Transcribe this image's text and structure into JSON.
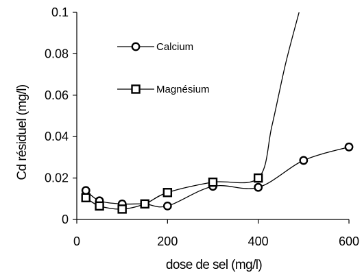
{
  "chart_data": {
    "type": "line",
    "xlabel": "dose de sel (mg/l)",
    "ylabel": "Cd résiduel (mg/l)",
    "xlim": [
      0,
      600
    ],
    "ylim": [
      0,
      0.1
    ],
    "x_ticks": [
      "0",
      "200",
      "400",
      "600"
    ],
    "y_ticks": [
      "0",
      "0.02",
      "0.04",
      "0.06",
      "0.08",
      "0.1"
    ],
    "grid": false,
    "legend_position": "top-left",
    "series": [
      {
        "name": "Calcium",
        "marker": "circle",
        "x": [
          20,
          50,
          100,
          150,
          200,
          300,
          400,
          500,
          600
        ],
        "y": [
          0.014,
          0.009,
          0.0075,
          0.0075,
          0.0065,
          0.016,
          0.0155,
          0.0285,
          0.035
        ]
      },
      {
        "name": "Magnésium",
        "marker": "square",
        "x": [
          20,
          50,
          100,
          150,
          200,
          300,
          400
        ],
        "y": [
          0.0105,
          0.0065,
          0.005,
          0.0075,
          0.013,
          0.018,
          0.02
        ]
      }
    ],
    "magnesium_extension": {
      "x": [
        400,
        430,
        460,
        490
      ],
      "y": [
        0.02,
        0.045,
        0.075,
        0.1
      ]
    }
  }
}
